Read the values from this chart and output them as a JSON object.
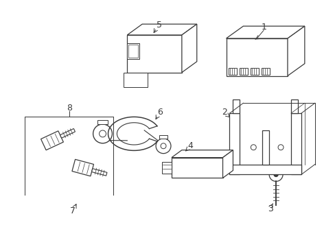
{
  "background_color": "#ffffff",
  "figsize": [
    4.89,
    3.6
  ],
  "dpi": 100,
  "line_color": "#3a3a3a",
  "label_fontsize": 9,
  "line_width": 0.9
}
